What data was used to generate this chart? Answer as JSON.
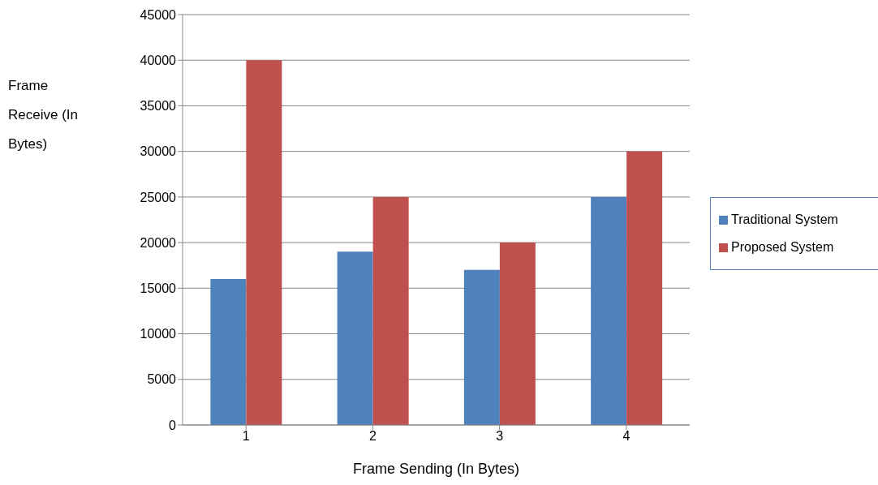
{
  "chart_data": {
    "type": "bar",
    "xlabel": "Frame Sending (In Bytes)",
    "ylabel": "Frame Receive (In Bytes)",
    "categories": [
      "1",
      "2",
      "3",
      "4"
    ],
    "series": [
      {
        "name": "Traditional System",
        "color": "#4f81bd",
        "values": [
          16000,
          19000,
          17000,
          25000
        ]
      },
      {
        "name": "Proposed System",
        "color": "#c0504d",
        "values": [
          40000,
          25000,
          20000,
          30000
        ]
      }
    ],
    "ylim": [
      0,
      45000
    ],
    "yticks": [
      0,
      5000,
      10000,
      15000,
      20000,
      25000,
      30000,
      35000,
      40000,
      45000
    ],
    "grid": "y",
    "legend": "right"
  }
}
